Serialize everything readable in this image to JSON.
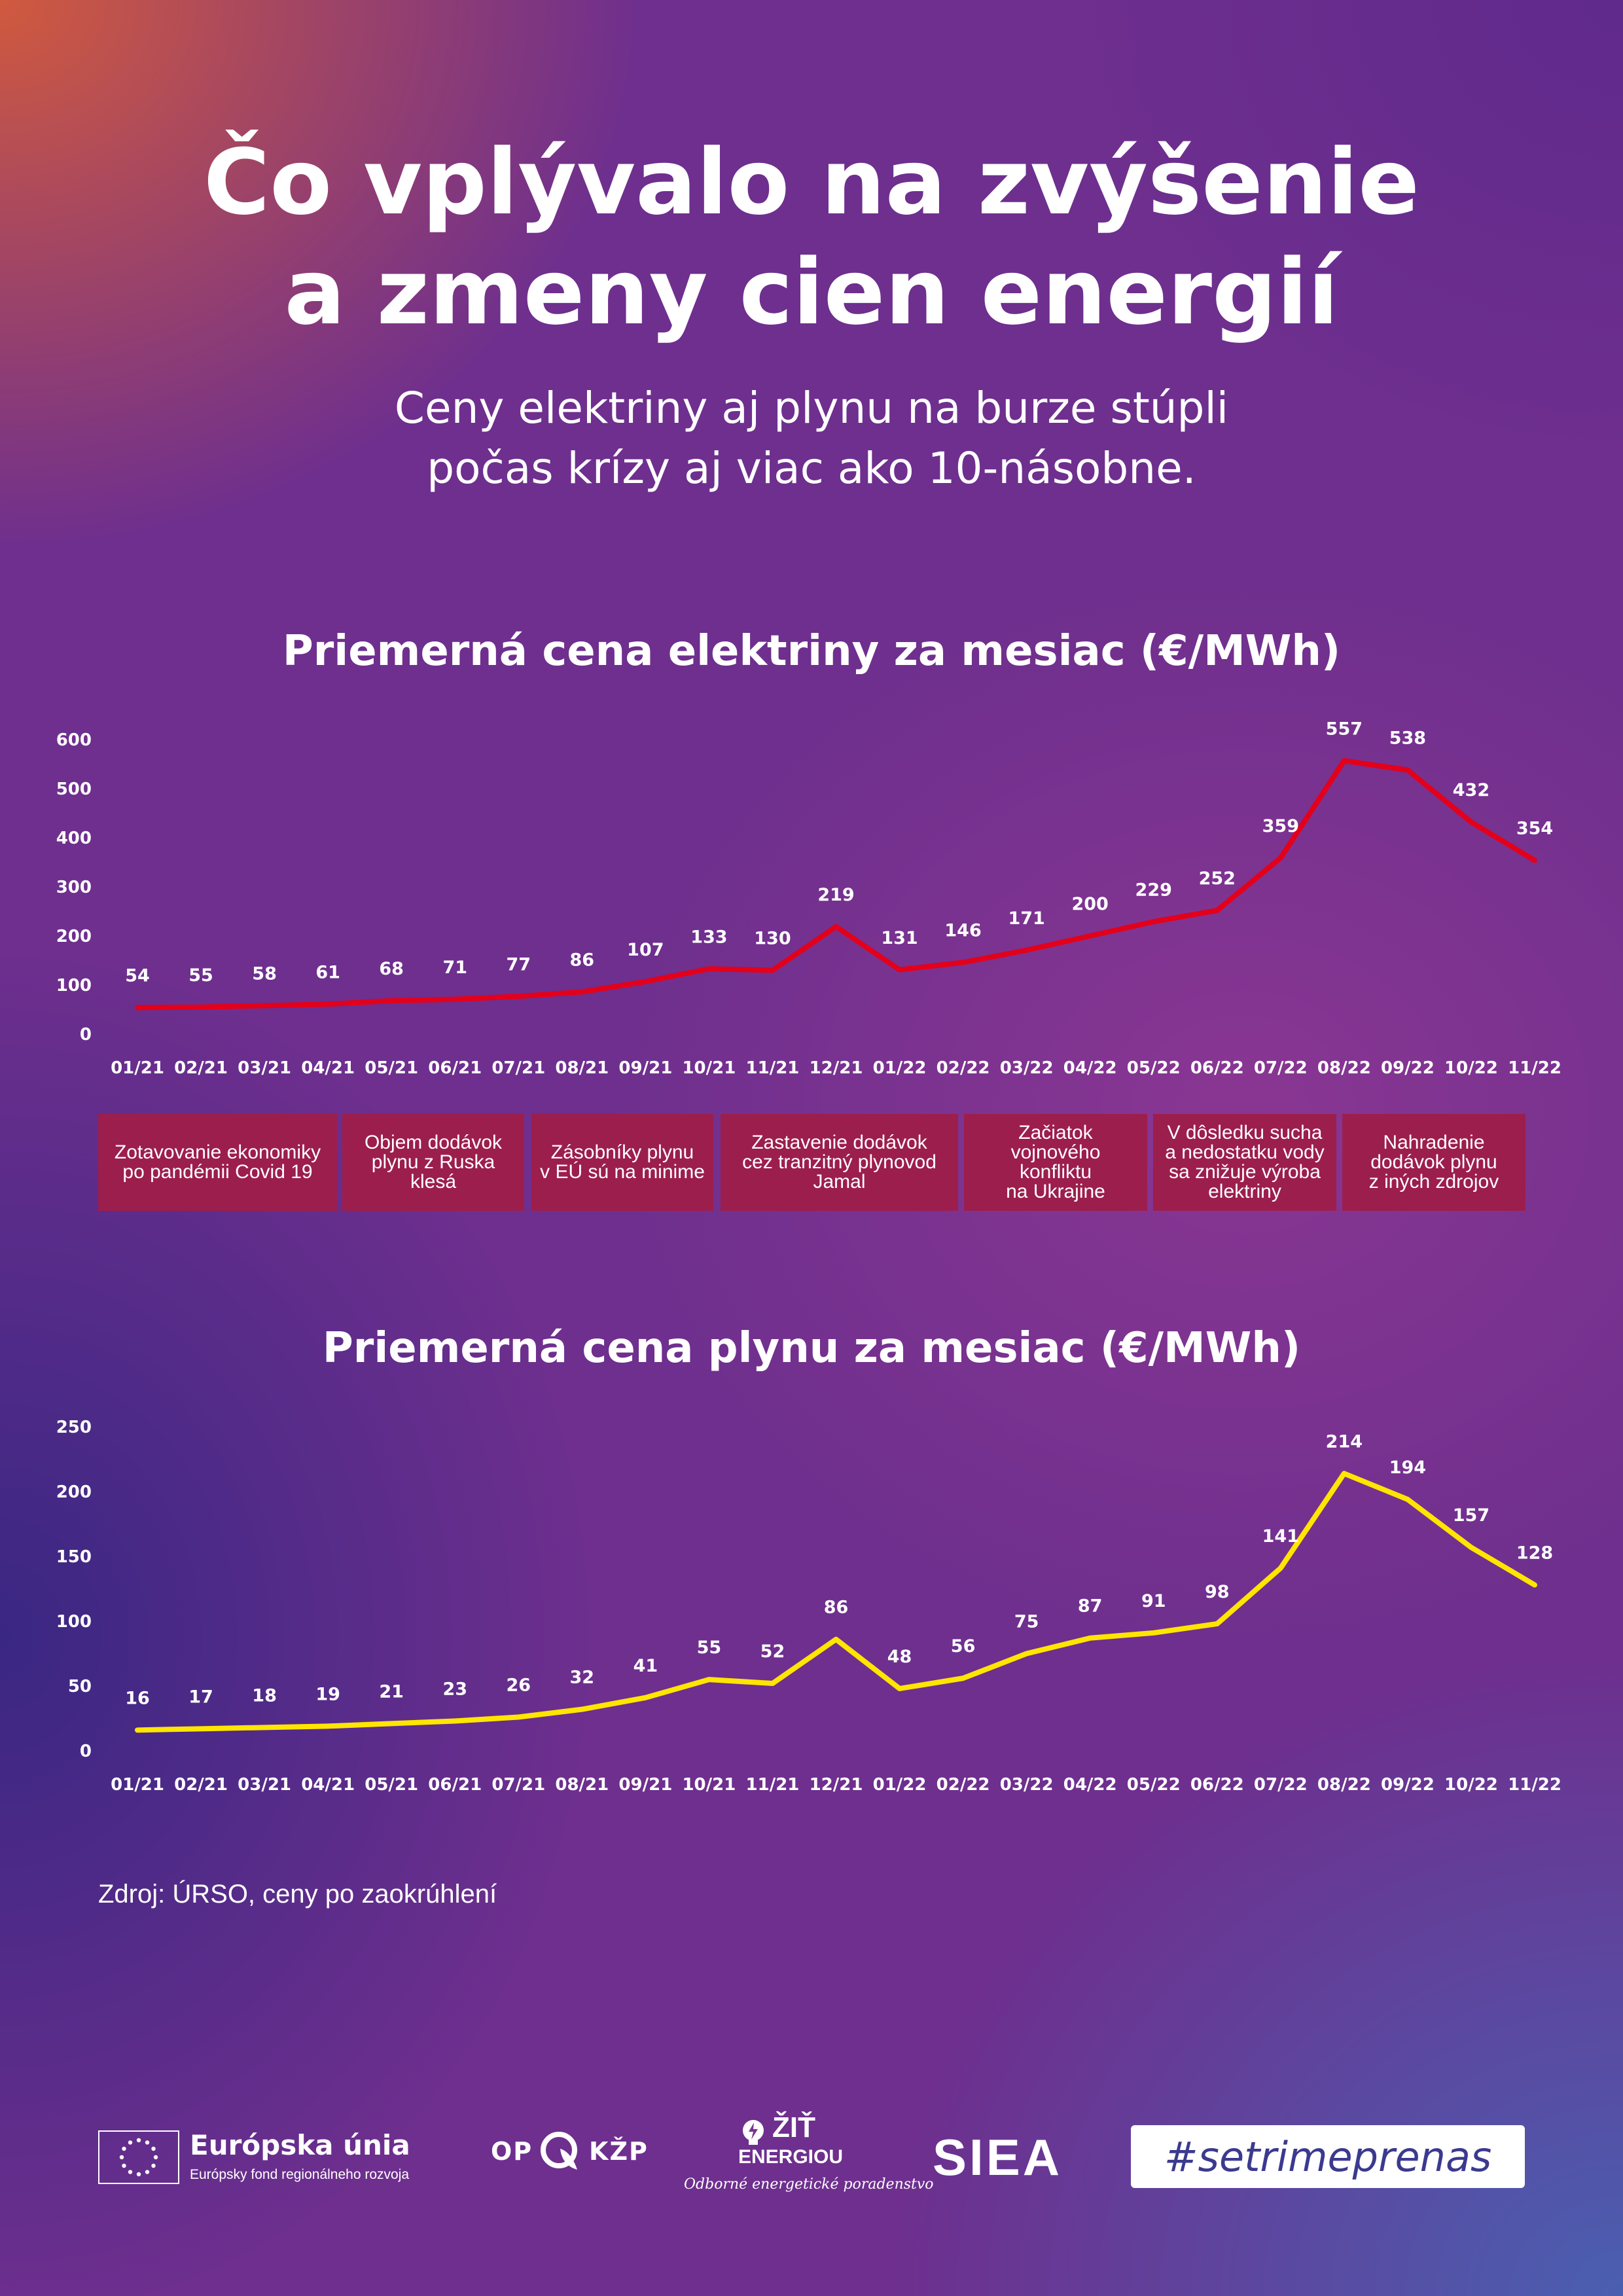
{
  "title_line1": "Čo vplývalo na zvýšenie",
  "title_line2": "a zmeny cien energií",
  "subtitle_line1": "Ceny elektriny aj plynu na burze stúpli",
  "subtitle_line2": "počas krízy aj viac ako 10-násobne.",
  "chart_data": [
    {
      "type": "line",
      "title": "Priemerná cena elektriny za mesiac (€/MWh)",
      "xlabel": "",
      "ylabel": "",
      "categories": [
        "01/21",
        "02/21",
        "03/21",
        "04/21",
        "05/21",
        "06/21",
        "07/21",
        "08/21",
        "09/21",
        "10/21",
        "11/21",
        "12/21",
        "01/22",
        "02/22",
        "03/22",
        "04/22",
        "05/22",
        "06/22",
        "07/22",
        "08/22",
        "09/22",
        "10/22",
        "11/22"
      ],
      "series": [
        {
          "values": [
            54,
            55,
            58,
            61,
            68,
            71,
            77,
            86,
            107,
            133,
            130,
            219,
            131,
            146,
            171,
            200,
            229,
            252,
            359,
            557,
            538,
            432,
            354
          ]
        }
      ],
      "yticks": [
        0,
        100,
        200,
        300,
        400,
        500,
        600
      ],
      "ylim": [
        0,
        600
      ],
      "grid": false,
      "line_color": "#e3001b"
    },
    {
      "type": "line",
      "title": "Priemerná cena plynu za mesiac (€/MWh)",
      "xlabel": "",
      "ylabel": "",
      "categories": [
        "01/21",
        "02/21",
        "03/21",
        "04/21",
        "05/21",
        "06/21",
        "07/21",
        "08/21",
        "09/21",
        "10/21",
        "11/21",
        "12/21",
        "01/22",
        "02/22",
        "03/22",
        "04/22",
        "05/22",
        "06/22",
        "07/22",
        "08/22",
        "09/22",
        "10/22",
        "11/22"
      ],
      "series": [
        {
          "values": [
            16,
            17,
            18,
            19,
            21,
            23,
            26,
            32,
            41,
            55,
            52,
            86,
            48,
            56,
            75,
            87,
            91,
            98,
            141,
            214,
            194,
            157,
            128
          ]
        }
      ],
      "yticks": [
        0,
        50,
        100,
        150,
        200,
        250
      ],
      "ylim": [
        0,
        250
      ],
      "grid": false,
      "line_color": "#ffe500"
    }
  ],
  "events": [
    {
      "text": "Zotavovanie ekonomiky\npo pandémii Covid 19"
    },
    {
      "text": "Objem dodávok\nplynu z Ruska\nklesá"
    },
    {
      "text": "Zásobníky plynu\nv EÚ sú na minime"
    },
    {
      "text": "Zastavenie dodávok\ncez tranzitný plynovod\nJamal"
    },
    {
      "text": "Začiatok\nvojnového\nkonfliktu\nna Ukrajine"
    },
    {
      "text": "V dôsledku sucha\na nedostatku vody\nsa znižuje výroba\nelektriny"
    },
    {
      "text": "Nahradenie\ndodávok plynu\nz iných zdrojov"
    }
  ],
  "event_color": "#9c1e4d",
  "source": "Zdroj: ÚRSO, ceny po zaokrúhlení",
  "logos": {
    "eu_name": "Európska únia",
    "eu_sub": "Európsky fond regionálneho rozvoja",
    "op_left": "OP",
    "op_right": "KŽP",
    "zit_line1": "ŽIŤ",
    "zit_line2": "ENERGIOU",
    "zit_sub": "Odborné energetické poradenstvo",
    "siea": "SIEA",
    "hashtag": "#setrimeprenas"
  }
}
